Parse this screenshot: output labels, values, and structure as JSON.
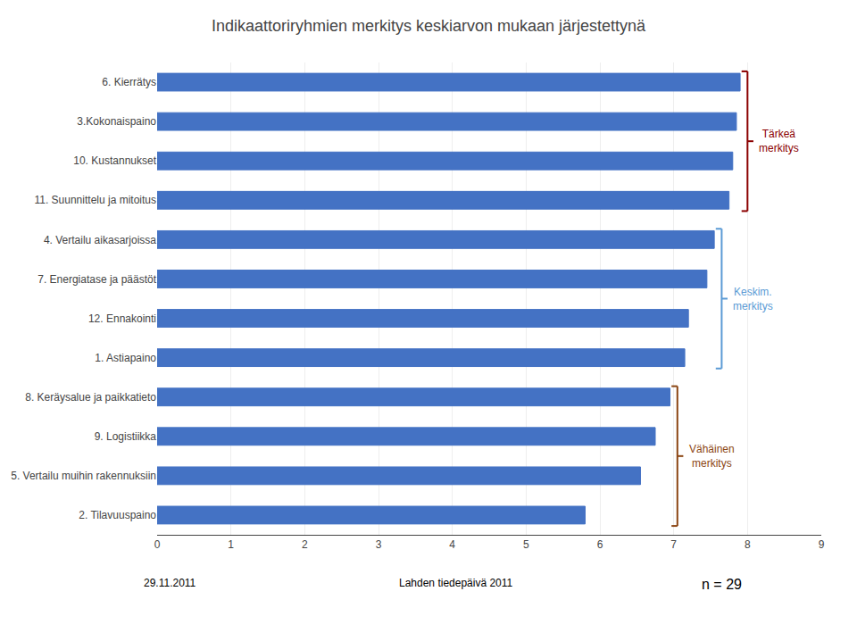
{
  "chart_data": {
    "type": "bar",
    "orientation": "horizontal",
    "title": "Indikaattoriryhmien merkitys keskiarvon mukaan järjestettynä",
    "categories": [
      "6. Kierrätys",
      "3.Kokonaispaino",
      "10. Kustannukset",
      "11. Suunnittelu ja mitoitus",
      "4. Vertailu aikasarjoissa",
      "7. Energiatase ja päästöt",
      "12. Ennakointi",
      "1. Astiapaino",
      "8. Keräysalue ja paikkatieto",
      "9. Logistiikka",
      "5. Vertailu muihin rakennuksiin",
      "2. Tilavuuspaino"
    ],
    "values": [
      7.9,
      7.85,
      7.8,
      7.75,
      7.55,
      7.45,
      7.2,
      7.15,
      6.95,
      6.75,
      6.55,
      5.8
    ],
    "color": "#4472C4",
    "xlim": [
      0,
      9
    ],
    "xticks": [
      0,
      1,
      2,
      3,
      4,
      5,
      6,
      7,
      8,
      9
    ],
    "grid": true,
    "annotations": [
      {
        "text": "Tärkeä\nmerkitys",
        "color": "#8B0000",
        "rows": [
          0,
          3
        ]
      },
      {
        "text": "Keskim.\nmerkitys",
        "color": "#5B9BD5",
        "rows": [
          4,
          7
        ]
      },
      {
        "text": "Vähäinen\nmerkitys",
        "color": "#8B4513",
        "rows": [
          8,
          11
        ]
      },
      {
        "text": "29.11.2011"
      },
      {
        "text": "Lahden tiedepäivä 2011"
      },
      {
        "text": "n = 29"
      }
    ]
  }
}
